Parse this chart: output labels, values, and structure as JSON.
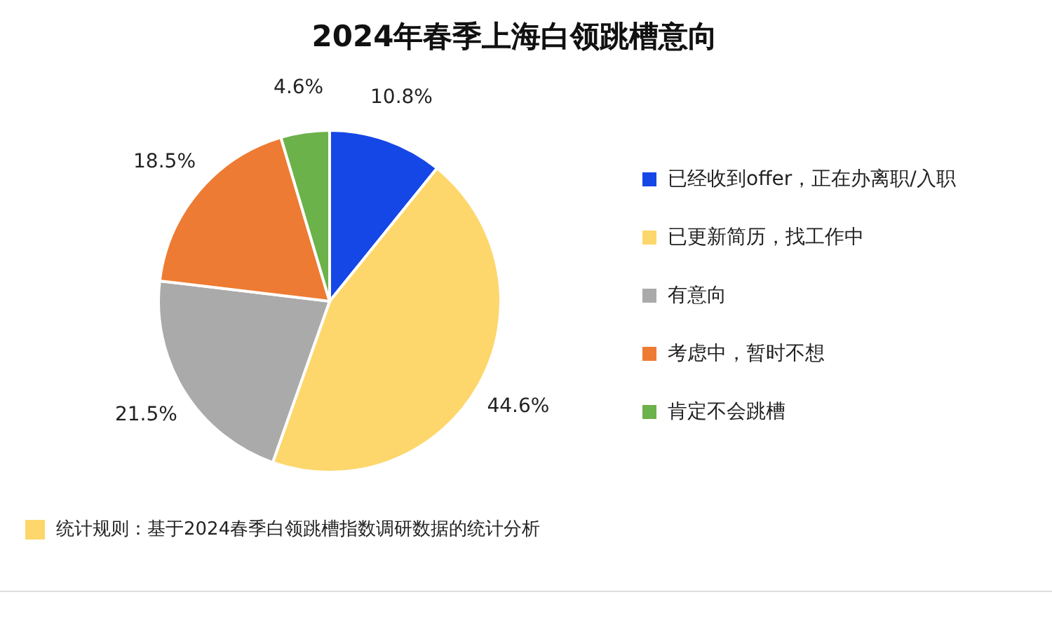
{
  "chart_data": {
    "type": "pie",
    "title": "2024年春季上海白领跳槽意向",
    "categories": [
      "已经收到offer，正在办离职/入职",
      "已更新简历，找工作中",
      "有意向",
      "考虑中，暂时不想",
      "肯定不会跳槽"
    ],
    "values": [
      10.8,
      44.6,
      21.5,
      18.5,
      4.6
    ],
    "colors": [
      "#1546e6",
      "#fdd76b",
      "#aaaaaa",
      "#ee7b33",
      "#6cb24a"
    ],
    "value_labels": [
      "10.8%",
      "44.6%",
      "21.5%",
      "18.5%",
      "4.6%"
    ],
    "legend": "right",
    "annotations": [
      "统计规则：基于2024春季白领跳槽指数调研数据的统计分析"
    ]
  }
}
